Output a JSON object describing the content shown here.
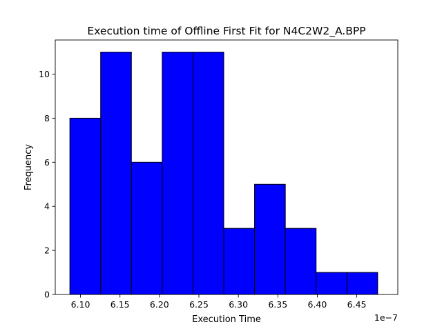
{
  "chart_data": {
    "type": "bar",
    "title": "Execution time of Offline First Fit for N4C2W2_A.BPP",
    "xlabel": "Execution Time",
    "ylabel": "Frequency",
    "x_offset_label": "1e−7",
    "x_unit_multiplier": 1e-07,
    "xlim": [
      6.068,
      6.502
    ],
    "ylim": [
      0,
      11.55
    ],
    "bin_edges": [
      6.0865,
      6.1255,
      6.1645,
      6.2035,
      6.2425,
      6.2815,
      6.3205,
      6.3595,
      6.3985,
      6.4375,
      6.4765
    ],
    "values": [
      8,
      11,
      6,
      11,
      11,
      3,
      5,
      3,
      1,
      1
    ],
    "xticks": [
      6.1,
      6.15,
      6.2,
      6.25,
      6.3,
      6.35,
      6.4,
      6.45
    ],
    "xtick_labels": [
      "6.10",
      "6.15",
      "6.20",
      "6.25",
      "6.30",
      "6.35",
      "6.40",
      "6.45"
    ],
    "yticks": [
      0,
      2,
      4,
      6,
      8,
      10
    ],
    "ytick_labels": [
      "0",
      "2",
      "4",
      "6",
      "8",
      "10"
    ],
    "bar_color": "#0000ff",
    "edge_color": "#000000",
    "grid": false,
    "legend": "none"
  }
}
